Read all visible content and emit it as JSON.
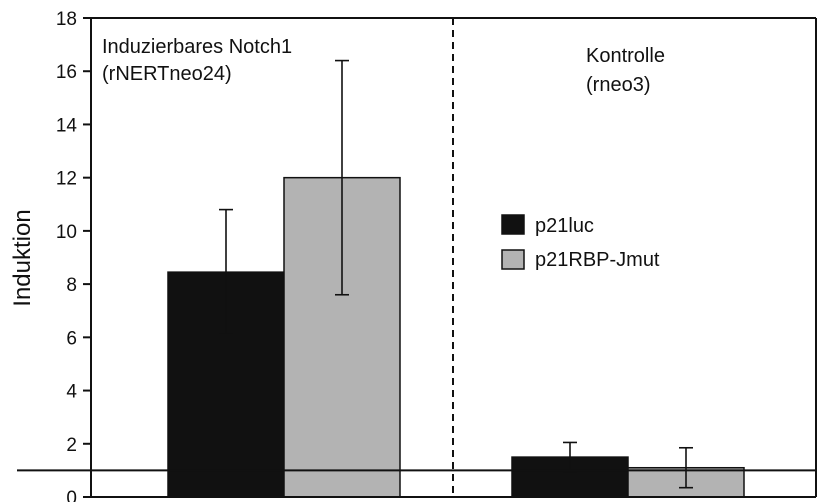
{
  "chart_data": {
    "type": "bar",
    "ylabel": "Induktion",
    "ylim": [
      0,
      18
    ],
    "yticks": [
      0,
      2,
      4,
      6,
      8,
      10,
      12,
      14,
      16,
      18
    ],
    "groups": [
      {
        "label_line1": "Induzierbares Notch1",
        "label_line2": "(rNERTneo24)"
      },
      {
        "label_line1": "Kontrolle",
        "label_line2": "(rneo3)"
      }
    ],
    "series": [
      {
        "name": "p21luc",
        "color": "#111111",
        "values": [
          8.45,
          1.5
        ],
        "errors": [
          2.35,
          0.55
        ]
      },
      {
        "name": "p21RBP-Jmut",
        "color": "#b3b3b3",
        "values": [
          12.0,
          1.1
        ],
        "errors": [
          4.4,
          0.75
        ]
      }
    ],
    "baseline": 1,
    "legend_position": "center-right"
  }
}
